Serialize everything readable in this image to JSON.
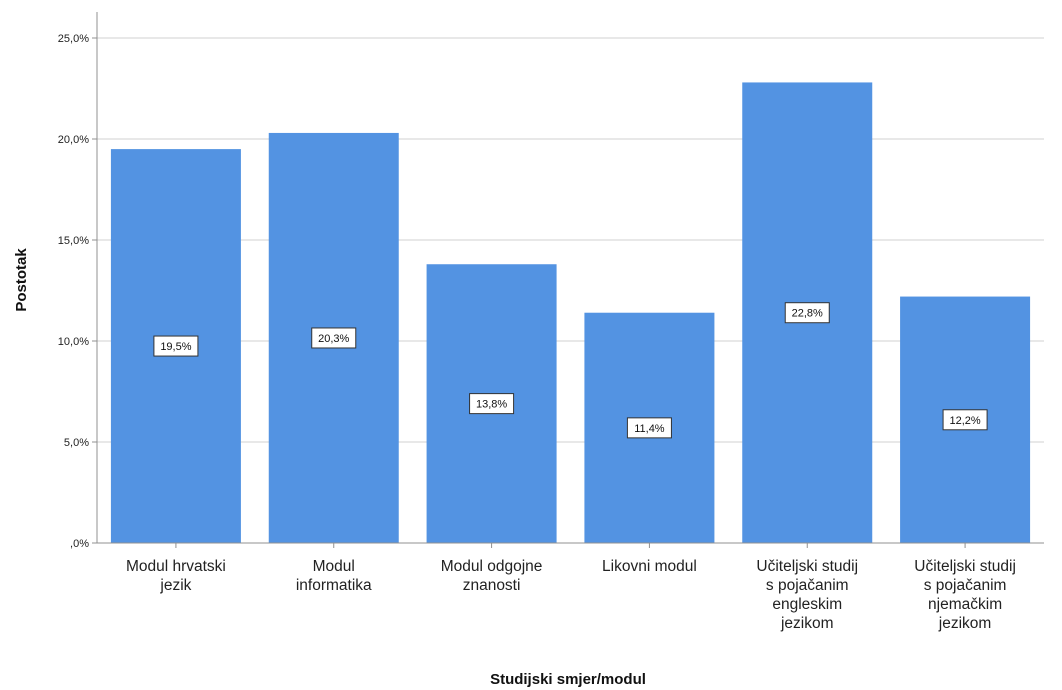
{
  "chart_data": {
    "type": "bar",
    "categories": [
      [
        "Modul hrvatski",
        "jezik"
      ],
      [
        "Modul",
        "informatika"
      ],
      [
        "Modul odgojne",
        "znanosti"
      ],
      [
        "Likovni modul"
      ],
      [
        "Učiteljski studij",
        "s pojačanim",
        "engleskim",
        "jezikom"
      ],
      [
        "Učiteljski studij",
        "s pojačanim",
        "njemačkim",
        "jezikom"
      ]
    ],
    "values": [
      19.5,
      20.3,
      13.8,
      11.4,
      22.8,
      12.2
    ],
    "data_labels": [
      "19,5%",
      "20,3%",
      "13,8%",
      "11,4%",
      "22,8%",
      "12,2%"
    ],
    "yticks": [
      0,
      5,
      10,
      15,
      20,
      25
    ],
    "ytick_labels": [
      ",0%",
      "5,0%",
      "10,0%",
      "15,0%",
      "20,0%",
      "25,0%"
    ],
    "ylim": [
      0,
      25
    ],
    "xlabel": "Studijski smjer/modul",
    "ylabel": "Postotak",
    "grid": true,
    "bar_color": "#5393e2",
    "grid_color": "#d0d0d0",
    "axis_color": "#909090"
  }
}
